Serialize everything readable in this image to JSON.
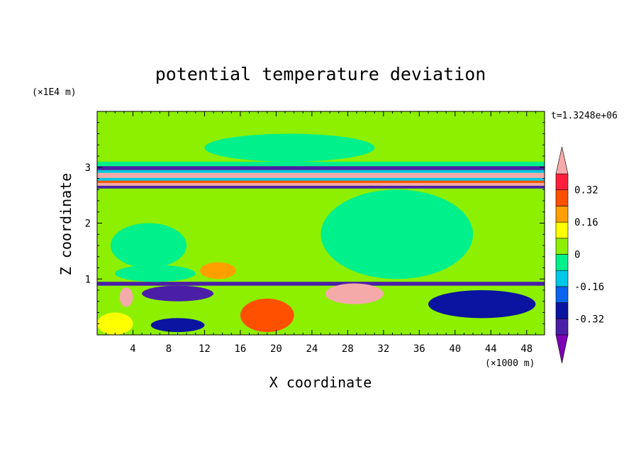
{
  "chart_data": {
    "type": "heatmap",
    "title": "potential temperature deviation",
    "xlabel": "X coordinate",
    "ylabel": "Z coordinate",
    "x_unit": "(×1000 m)",
    "y_unit": "(×1E4 m)",
    "time_label": "t=1.3248e+06",
    "xlim": [
      0,
      50
    ],
    "ylim": [
      0,
      4
    ],
    "x_ticks": [
      "4",
      "8",
      "12",
      "16",
      "20",
      "24",
      "28",
      "32",
      "36",
      "40",
      "44",
      "48"
    ],
    "y_ticks": [
      "1",
      "2",
      "3"
    ],
    "colorbar": {
      "tick_labels": [
        "0.32",
        "0.16",
        "0",
        "-0.16",
        "-0.32"
      ],
      "tick_values": [
        0.32,
        0.16,
        0,
        -0.16,
        -0.32
      ],
      "levels": [
        -0.4,
        -0.32,
        -0.24,
        -0.16,
        -0.08,
        0,
        0.08,
        0.16,
        0.24,
        0.32,
        0.4
      ],
      "colors": [
        "#7b00b4",
        "#4b1ea8",
        "#0a14a0",
        "#0a64f0",
        "#00c8e6",
        "#00f08c",
        "#8cf000",
        "#ffff00",
        "#ffa000",
        "#ff5000",
        "#ff1e3c",
        "#f5aaaa"
      ],
      "extend": "both"
    },
    "background_value": 0.04,
    "features": [
      {
        "kind": "band",
        "z": [
          2.62,
          2.67
        ],
        "value": -0.36
      },
      {
        "kind": "band",
        "z": [
          2.67,
          2.72
        ],
        "value": 0.45
      },
      {
        "kind": "band",
        "z": [
          2.72,
          2.76
        ],
        "value": 0.28
      },
      {
        "kind": "band",
        "z": [
          2.76,
          2.81
        ],
        "value": -0.1
      },
      {
        "kind": "band",
        "z": [
          2.81,
          2.9
        ],
        "value": 0.45
      },
      {
        "kind": "band",
        "z": [
          2.9,
          2.95
        ],
        "value": -0.12
      },
      {
        "kind": "band",
        "z": [
          2.95,
          3.02
        ],
        "value": -0.36
      },
      {
        "kind": "band",
        "z": [
          3.02,
          3.1
        ],
        "value": -0.04
      },
      {
        "kind": "band",
        "z": [
          0.88,
          0.95
        ],
        "value": -0.38
      },
      {
        "kind": "blob",
        "x": [
          12,
          31
        ],
        "z": [
          3.1,
          3.6
        ],
        "value": -0.03
      },
      {
        "kind": "blob",
        "x": [
          25,
          42
        ],
        "z": [
          1,
          2.6
        ],
        "value": -0.02
      },
      {
        "kind": "blob",
        "x": [
          1.5,
          10
        ],
        "z": [
          1.2,
          2
        ],
        "value": -0.02
      },
      {
        "kind": "blob",
        "x": [
          11.5,
          15.5
        ],
        "z": [
          1,
          1.3
        ],
        "value": 0.17
      },
      {
        "kind": "blob",
        "x": [
          2,
          11
        ],
        "z": [
          0.95,
          1.25
        ],
        "value": -0.02
      },
      {
        "kind": "blob",
        "x": [
          5,
          13
        ],
        "z": [
          0.6,
          0.88
        ],
        "value": -0.4
      },
      {
        "kind": "blob",
        "x": [
          25.5,
          32
        ],
        "z": [
          0.55,
          0.92
        ],
        "value": 0.45
      },
      {
        "kind": "blob",
        "x": [
          37,
          49
        ],
        "z": [
          0.3,
          0.8
        ],
        "value": -0.3
      },
      {
        "kind": "blob",
        "x": [
          2.5,
          4
        ],
        "z": [
          0.5,
          0.85
        ],
        "value": 0.45
      },
      {
        "kind": "blob",
        "x": [
          16,
          22
        ],
        "z": [
          0.05,
          0.65
        ],
        "value": 0.26
      },
      {
        "kind": "blob",
        "x": [
          6,
          12
        ],
        "z": [
          0.05,
          0.3
        ],
        "value": -0.3
      },
      {
        "kind": "blob",
        "x": [
          0,
          4
        ],
        "z": [
          0,
          0.4
        ],
        "value": 0.1
      }
    ]
  }
}
